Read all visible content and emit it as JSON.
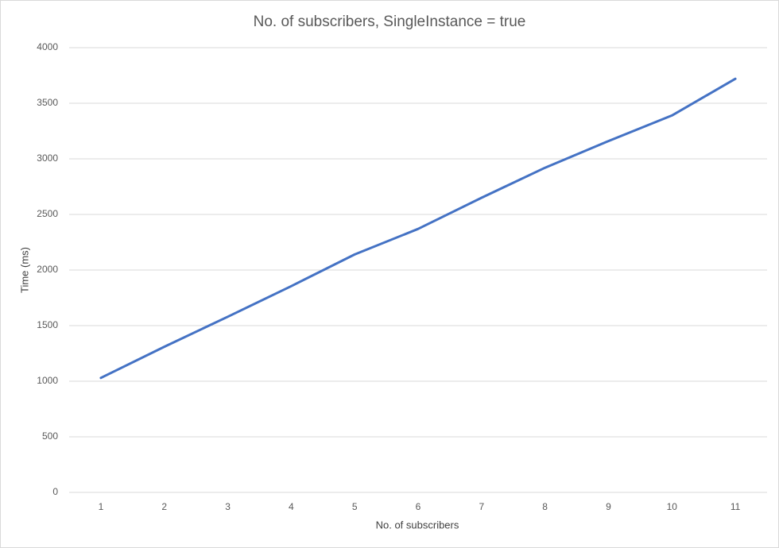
{
  "chart_data": {
    "type": "line",
    "title": "No. of subscribers, SingleInstance = true",
    "x_label": "No. of subscribers",
    "y_label": "Time (ms)",
    "categories": [
      "1",
      "2",
      "3",
      "4",
      "5",
      "6",
      "7",
      "8",
      "9",
      "10",
      "11"
    ],
    "series": [
      {
        "name": "Time (ms)",
        "color": "#4472c4",
        "values": [
          1030,
          1310,
          1580,
          1855,
          2140,
          2370,
          2650,
          2920,
          3160,
          3390,
          3720
        ]
      }
    ],
    "ylim": [
      0,
      4000
    ],
    "yticks": [
      0,
      500,
      1000,
      1500,
      2000,
      2500,
      3000,
      3500,
      4000
    ],
    "grid": true
  }
}
